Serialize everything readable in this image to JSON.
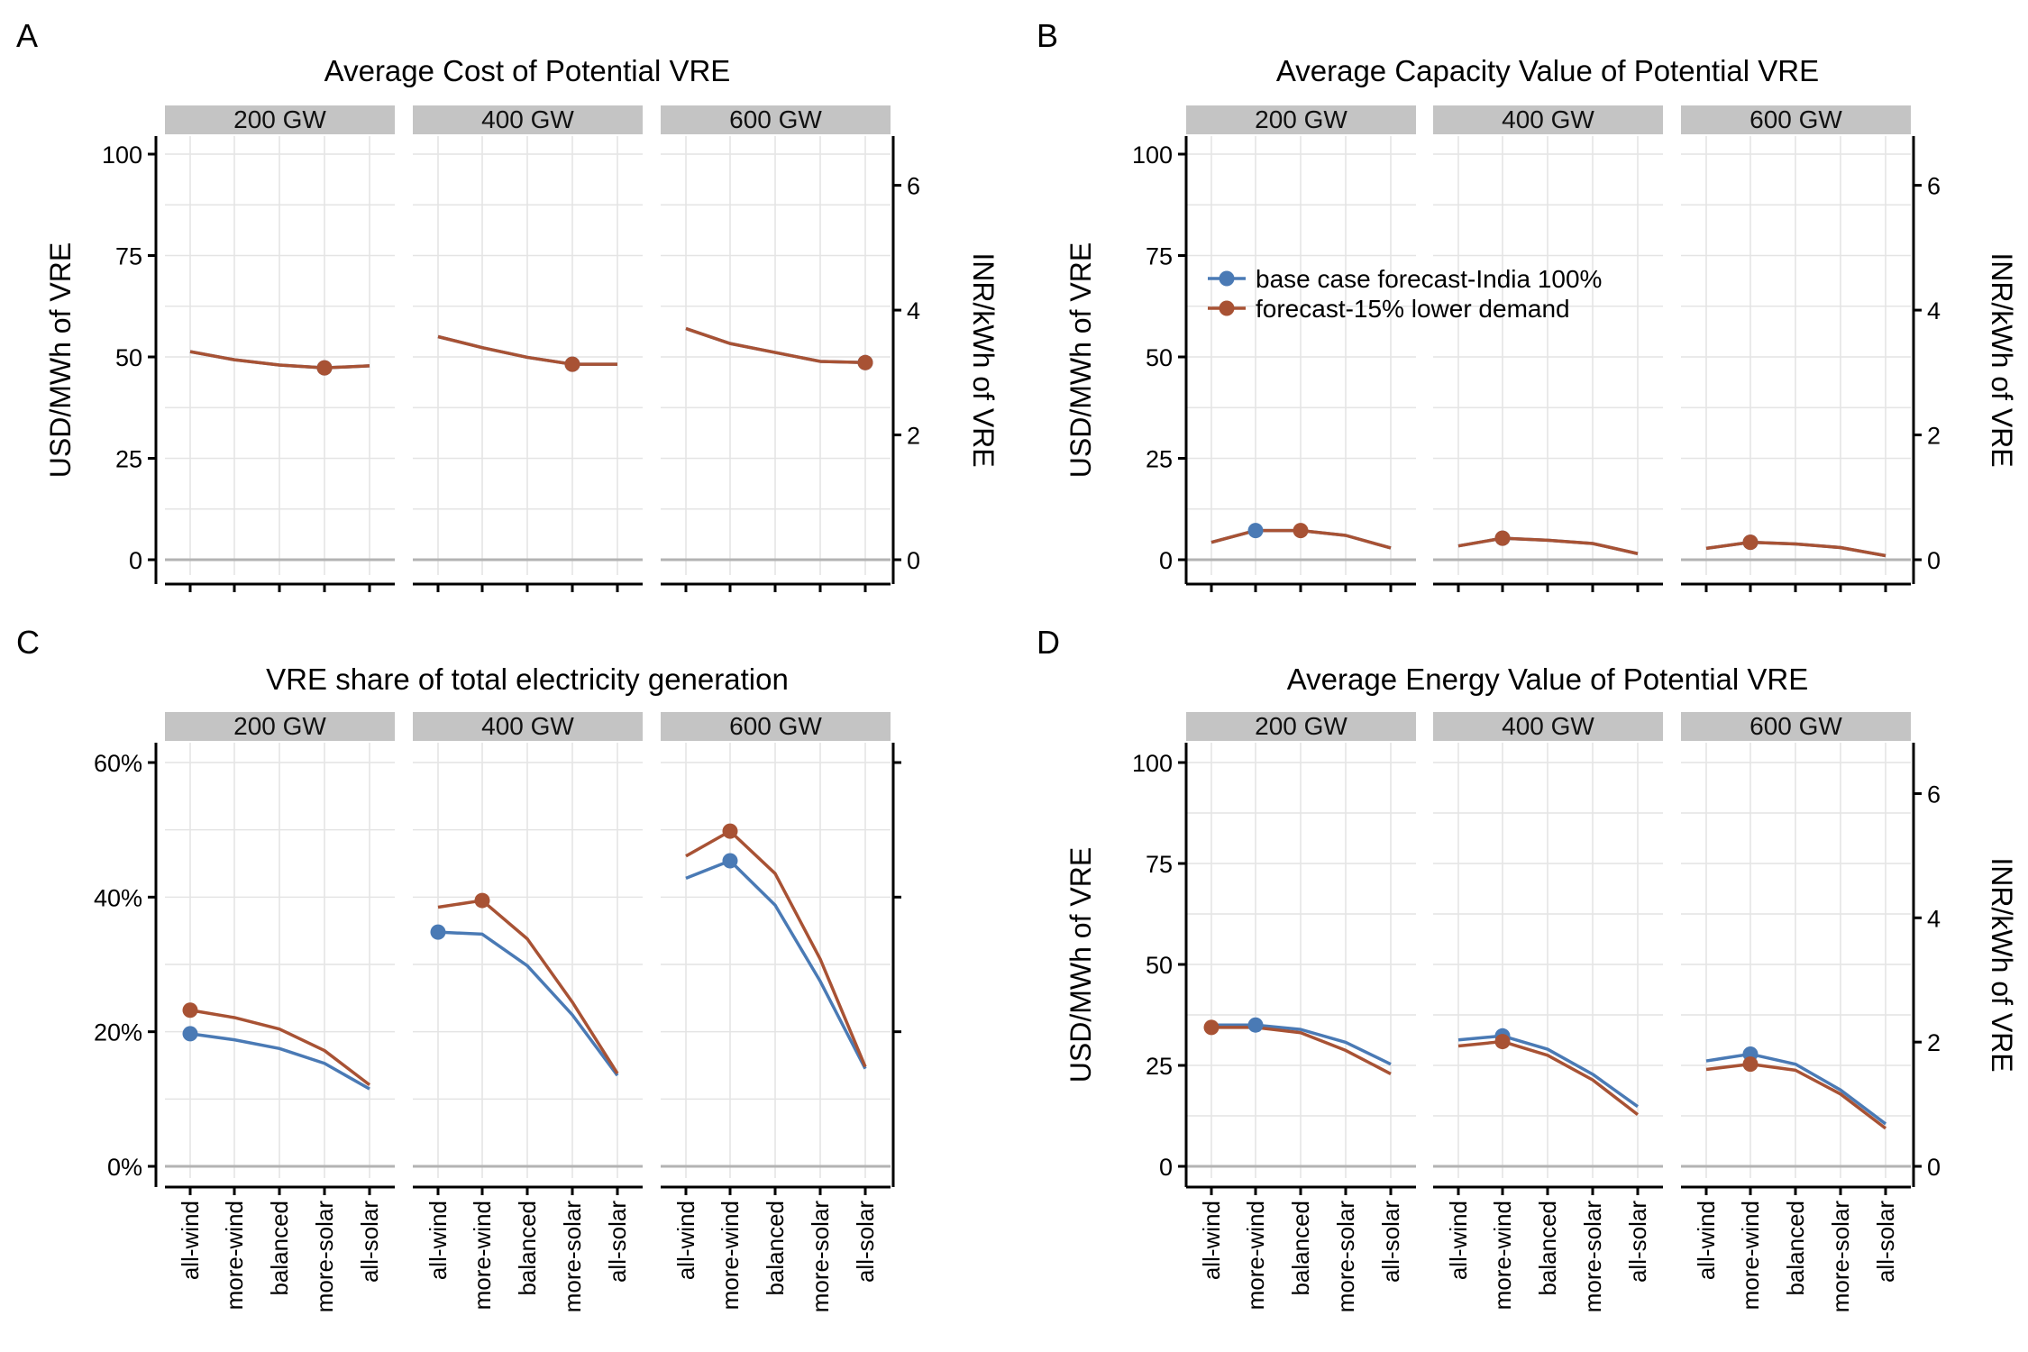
{
  "figure": {
    "facets": [
      "200 GW",
      "400 GW",
      "600 GW"
    ],
    "categories": [
      "all-wind",
      "more-wind",
      "balanced",
      "more-solar",
      "all-solar"
    ],
    "colors": {
      "base": "#4a7ab5",
      "low": "#a85234"
    },
    "legend": {
      "position": "top-left inside panel B",
      "items": [
        {
          "label": "base case forecast-India 100%",
          "color": "#4a7ab5"
        },
        {
          "label": "forecast-15% lower demand",
          "color": "#a85234"
        }
      ]
    }
  },
  "chart_data": [
    {
      "id": "A",
      "letter": "A",
      "type": "line",
      "title": "Average Cost of Potential VRE",
      "ylabel": "USD/MWh of VRE",
      "y2label": "INR/kWh of VRE",
      "ylim": [
        0,
        100
      ],
      "yticks": [
        0,
        25,
        50,
        75,
        100
      ],
      "ytick_labels": [
        "0",
        "25",
        "50",
        "75",
        "100"
      ],
      "y2ticks": [
        0,
        2,
        4,
        6
      ],
      "y2_per_y": 0.065,
      "x_tick_labels_shown": false,
      "series": [
        {
          "key": "base",
          "values": [
            [
              51.3,
              49.3,
              48.0,
              47.3,
              47.8
            ],
            [
              55.0,
              52.3,
              49.9,
              48.2,
              48.2
            ],
            [
              57.0,
              53.3,
              51.1,
              48.9,
              48.6
            ]
          ]
        },
        {
          "key": "low",
          "values": [
            [
              51.3,
              49.3,
              48.0,
              47.3,
              47.8
            ],
            [
              55.0,
              52.3,
              49.9,
              48.2,
              48.2
            ],
            [
              57.0,
              53.3,
              51.1,
              48.9,
              48.6
            ]
          ]
        }
      ],
      "markers": [
        {
          "key": "base",
          "points": [
            [
              3,
              47.3
            ],
            [
              3,
              48.2
            ],
            [
              4,
              48.6
            ]
          ]
        },
        {
          "key": "low",
          "points": [
            [
              3,
              47.3
            ],
            [
              3,
              48.2
            ],
            [
              4,
              48.6
            ]
          ]
        }
      ]
    },
    {
      "id": "B",
      "letter": "B",
      "type": "line",
      "title": "Average Capacity Value of Potential VRE",
      "ylabel": "USD/MWh of VRE",
      "y2label": "INR/kWh of VRE",
      "ylim": [
        0,
        100
      ],
      "yticks": [
        0,
        25,
        50,
        75,
        100
      ],
      "ytick_labels": [
        "0",
        "25",
        "50",
        "75",
        "100"
      ],
      "y2ticks": [
        0,
        2,
        4,
        6
      ],
      "y2_per_y": 0.065,
      "x_tick_labels_shown": false,
      "series": [
        {
          "key": "base",
          "values": [
            [
              4.3,
              7.2,
              7.2,
              6.0,
              2.9
            ],
            [
              3.4,
              5.3,
              4.8,
              4.0,
              1.5
            ],
            [
              2.8,
              4.3,
              3.9,
              3.0,
              1.0
            ]
          ]
        },
        {
          "key": "low",
          "values": [
            [
              4.3,
              7.2,
              7.2,
              6.0,
              2.9
            ],
            [
              3.4,
              5.3,
              4.8,
              4.0,
              1.5
            ],
            [
              2.8,
              4.3,
              3.9,
              3.0,
              1.0
            ]
          ]
        }
      ],
      "markers": [
        {
          "key": "base",
          "points": [
            [
              1,
              7.2
            ],
            [
              1,
              5.3
            ],
            [
              1,
              4.3
            ]
          ]
        },
        {
          "key": "low",
          "points": [
            [
              2,
              7.2
            ],
            [
              1,
              5.3
            ],
            [
              1,
              4.3
            ]
          ]
        }
      ]
    },
    {
      "id": "C",
      "letter": "C",
      "type": "line",
      "title": "VRE share of total electricity generation",
      "ylabel": "",
      "y2label": "",
      "ylim": [
        0,
        60
      ],
      "yticks": [
        0,
        20,
        40,
        60
      ],
      "ytick_labels": [
        "0%",
        "20%",
        "40%",
        "60%"
      ],
      "y2ticks": [
        20,
        40,
        60
      ],
      "y2_per_y": 1,
      "y2_labels_shown": false,
      "x_tick_labels_shown": true,
      "series": [
        {
          "key": "base",
          "values": [
            [
              19.7,
              18.8,
              17.5,
              15.3,
              11.5
            ],
            [
              34.8,
              34.5,
              29.8,
              22.5,
              13.5
            ],
            [
              42.8,
              45.4,
              38.8,
              27.5,
              14.5
            ]
          ]
        },
        {
          "key": "low",
          "values": [
            [
              23.2,
              22.1,
              20.4,
              17.2,
              12.1
            ],
            [
              38.5,
              39.5,
              33.8,
              24.4,
              13.8
            ],
            [
              46.1,
              49.8,
              43.5,
              30.8,
              14.8
            ]
          ]
        }
      ],
      "markers": [
        {
          "key": "base",
          "points": [
            [
              0,
              19.7
            ],
            [
              0,
              34.8
            ],
            [
              1,
              45.4
            ]
          ]
        },
        {
          "key": "low",
          "points": [
            [
              0,
              23.2
            ],
            [
              1,
              39.5
            ],
            [
              1,
              49.8
            ]
          ]
        }
      ]
    },
    {
      "id": "D",
      "letter": "D",
      "type": "line",
      "title": "Average Energy Value of Potential VRE",
      "ylabel": "USD/MWh of VRE",
      "y2label": "INR/kWh of VRE",
      "ylim": [
        0,
        100
      ],
      "yticks": [
        0,
        25,
        50,
        75,
        100
      ],
      "ytick_labels": [
        "0",
        "25",
        "50",
        "75",
        "100"
      ],
      "y2ticks": [
        0,
        2,
        4,
        6
      ],
      "y2_per_y": 0.065,
      "x_tick_labels_shown": true,
      "series": [
        {
          "key": "base",
          "values": [
            [
              35.0,
              35.0,
              33.9,
              30.7,
              25.3
            ],
            [
              31.3,
              32.3,
              29.0,
              22.8,
              14.8
            ],
            [
              26.1,
              27.8,
              25.3,
              18.9,
              10.5
            ]
          ]
        },
        {
          "key": "low",
          "values": [
            [
              34.4,
              34.4,
              33.1,
              28.7,
              22.9
            ],
            [
              29.8,
              30.9,
              27.5,
              21.4,
              12.8
            ],
            [
              24.0,
              25.3,
              23.8,
              17.9,
              9.4
            ]
          ]
        }
      ],
      "markers": [
        {
          "key": "base",
          "points": [
            [
              1,
              35.0
            ],
            [
              1,
              32.3
            ],
            [
              1,
              27.8
            ]
          ]
        },
        {
          "key": "low",
          "points": [
            [
              0,
              34.4
            ],
            [
              1,
              30.9
            ],
            [
              1,
              25.3
            ]
          ]
        }
      ]
    }
  ]
}
